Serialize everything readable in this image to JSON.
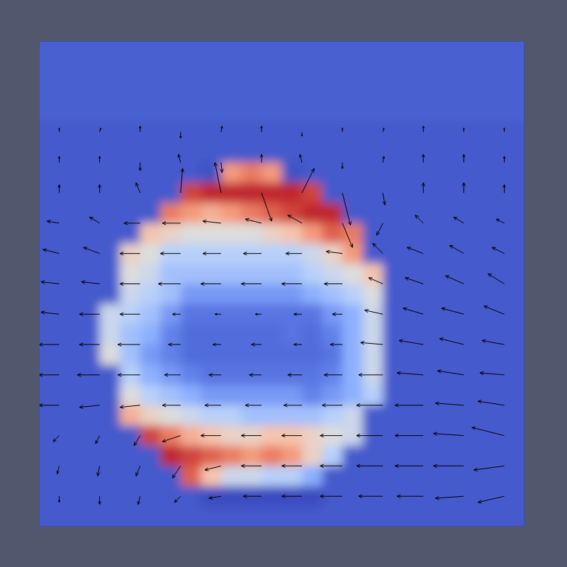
{
  "chart_data": {
    "type": "heatmap",
    "xlim": [
      0,
      24
    ],
    "ylim": [
      0,
      24
    ],
    "tick_labels": false,
    "color_range": [
      0,
      1
    ],
    "cells": [
      [
        0.07,
        0.07,
        0.07,
        0.07,
        0.07,
        0.07,
        0.07,
        0.07,
        0.07,
        0.07,
        0.07,
        0.07,
        0.07,
        0.07,
        0.07,
        0.07,
        0.07,
        0.07,
        0.07,
        0.07,
        0.07,
        0.07,
        0.07,
        0.07
      ],
      [
        0.07,
        0.07,
        0.07,
        0.07,
        0.07,
        0.07,
        0.07,
        0.07,
        0.07,
        0.07,
        0.07,
        0.07,
        0.07,
        0.07,
        0.07,
        0.07,
        0.07,
        0.07,
        0.07,
        0.07,
        0.07,
        0.07,
        0.07,
        0.07
      ],
      [
        0.07,
        0.07,
        0.07,
        0.07,
        0.07,
        0.07,
        0.07,
        0.07,
        0.07,
        0.07,
        0.07,
        0.07,
        0.07,
        0.07,
        0.07,
        0.07,
        0.07,
        0.07,
        0.07,
        0.07,
        0.07,
        0.07,
        0.07,
        0.07
      ],
      [
        0.07,
        0.07,
        0.07,
        0.07,
        0.07,
        0.07,
        0.07,
        0.07,
        0.07,
        0.07,
        0.07,
        0.07,
        0.07,
        0.07,
        0.07,
        0.07,
        0.07,
        0.07,
        0.07,
        0.07,
        0.07,
        0.07,
        0.07,
        0.07
      ],
      [
        0.05,
        0.05,
        0.05,
        0.05,
        0.05,
        0.05,
        0.05,
        0.05,
        0.05,
        0.05,
        0.05,
        0.05,
        0.05,
        0.05,
        0.05,
        0.05,
        0.05,
        0.05,
        0.05,
        0.05,
        0.05,
        0.05,
        0.05,
        0.05
      ],
      [
        0.05,
        0.05,
        0.05,
        0.05,
        0.05,
        0.05,
        0.05,
        0.05,
        0.05,
        0.05,
        0.05,
        0.05,
        0.05,
        0.05,
        0.05,
        0.05,
        0.05,
        0.05,
        0.05,
        0.05,
        0.05,
        0.05,
        0.05,
        0.05
      ],
      [
        0.05,
        0.05,
        0.05,
        0.05,
        0.05,
        0.05,
        0.05,
        0.05,
        0.02,
        0.7,
        0.75,
        0.7,
        0.02,
        0.05,
        0.05,
        0.05,
        0.05,
        0.05,
        0.05,
        0.05,
        0.05,
        0.05,
        0.05,
        0.05
      ],
      [
        0.05,
        0.05,
        0.05,
        0.05,
        0.05,
        0.05,
        0.05,
        0.85,
        0.9,
        0.9,
        0.9,
        0.9,
        0.9,
        0.85,
        0.05,
        0.05,
        0.05,
        0.05,
        0.05,
        0.05,
        0.05,
        0.05,
        0.05,
        0.05
      ],
      [
        0.05,
        0.05,
        0.05,
        0.05,
        0.05,
        0.05,
        0.75,
        0.7,
        0.65,
        0.7,
        0.75,
        0.8,
        0.85,
        0.9,
        0.9,
        0.05,
        0.05,
        0.05,
        0.05,
        0.05,
        0.05,
        0.05,
        0.05,
        0.05
      ],
      [
        0.05,
        0.05,
        0.05,
        0.05,
        0.05,
        0.6,
        0.55,
        0.5,
        0.5,
        0.5,
        0.5,
        0.55,
        0.6,
        0.7,
        0.8,
        0.75,
        0.05,
        0.05,
        0.05,
        0.05,
        0.05,
        0.05,
        0.05,
        0.05
      ],
      [
        0.05,
        0.05,
        0.05,
        0.05,
        0.55,
        0.5,
        0.4,
        0.4,
        0.4,
        0.4,
        0.4,
        0.4,
        0.4,
        0.45,
        0.55,
        0.7,
        0.05,
        0.05,
        0.05,
        0.05,
        0.05,
        0.05,
        0.05,
        0.05
      ],
      [
        0.05,
        0.05,
        0.05,
        0.05,
        0.5,
        0.45,
        0.35,
        0.35,
        0.35,
        0.35,
        0.35,
        0.35,
        0.35,
        0.4,
        0.45,
        0.5,
        0.6,
        0.05,
        0.05,
        0.05,
        0.05,
        0.05,
        0.05,
        0.05
      ],
      [
        0.05,
        0.05,
        0.05,
        0.05,
        0.45,
        0.4,
        0.35,
        0.25,
        0.25,
        0.25,
        0.25,
        0.25,
        0.25,
        0.3,
        0.35,
        0.4,
        0.5,
        0.05,
        0.05,
        0.05,
        0.05,
        0.05,
        0.05,
        0.05
      ],
      [
        0.05,
        0.05,
        0.05,
        0.45,
        0.4,
        0.35,
        0.25,
        0.15,
        0.15,
        0.15,
        0.15,
        0.15,
        0.15,
        0.15,
        0.25,
        0.3,
        0.45,
        0.05,
        0.05,
        0.05,
        0.05,
        0.05,
        0.05,
        0.05
      ],
      [
        0.05,
        0.05,
        0.05,
        0.45,
        0.35,
        0.3,
        0.2,
        0.12,
        0.12,
        0.12,
        0.12,
        0.12,
        0.15,
        0.12,
        0.2,
        0.3,
        0.45,
        0.05,
        0.05,
        0.05,
        0.05,
        0.05,
        0.05,
        0.05
      ],
      [
        0.05,
        0.05,
        0.05,
        0.5,
        0.35,
        0.25,
        0.2,
        0.12,
        0.12,
        0.12,
        0.12,
        0.12,
        0.12,
        0.12,
        0.15,
        0.3,
        0.45,
        0.05,
        0.05,
        0.05,
        0.05,
        0.05,
        0.05,
        0.05
      ],
      [
        0.05,
        0.05,
        0.05,
        0.05,
        0.4,
        0.3,
        0.25,
        0.2,
        0.15,
        0.15,
        0.15,
        0.15,
        0.15,
        0.15,
        0.2,
        0.3,
        0.45,
        0.05,
        0.05,
        0.05,
        0.05,
        0.05,
        0.05,
        0.05
      ],
      [
        0.05,
        0.05,
        0.05,
        0.05,
        0.5,
        0.4,
        0.35,
        0.3,
        0.25,
        0.25,
        0.25,
        0.25,
        0.25,
        0.2,
        0.25,
        0.3,
        0.4,
        0.05,
        0.05,
        0.05,
        0.05,
        0.05,
        0.05,
        0.05
      ],
      [
        0.05,
        0.05,
        0.05,
        0.05,
        0.65,
        0.55,
        0.5,
        0.45,
        0.4,
        0.4,
        0.35,
        0.35,
        0.35,
        0.35,
        0.4,
        0.45,
        0.05,
        0.05,
        0.05,
        0.05,
        0.05,
        0.05,
        0.05,
        0.05
      ],
      [
        0.05,
        0.05,
        0.05,
        0.05,
        0.05,
        0.85,
        0.75,
        0.65,
        0.6,
        0.55,
        0.55,
        0.6,
        0.6,
        0.55,
        0.5,
        0.45,
        0.05,
        0.05,
        0.05,
        0.05,
        0.05,
        0.05,
        0.05,
        0.05
      ],
      [
        0.05,
        0.05,
        0.05,
        0.05,
        0.05,
        0.05,
        0.9,
        0.85,
        0.8,
        0.75,
        0.7,
        0.75,
        0.7,
        0.55,
        0.4,
        0.05,
        0.05,
        0.05,
        0.05,
        0.05,
        0.05,
        0.05,
        0.05,
        0.05
      ],
      [
        0.05,
        0.05,
        0.05,
        0.05,
        0.05,
        0.05,
        0.05,
        0.8,
        0.6,
        0.45,
        0.45,
        0.4,
        0.4,
        0.3,
        0.05,
        0.05,
        0.05,
        0.05,
        0.05,
        0.05,
        0.05,
        0.05,
        0.05,
        0.05
      ],
      [
        0.05,
        0.05,
        0.05,
        0.05,
        0.05,
        0.05,
        0.05,
        0.05,
        0,
        0,
        0,
        0,
        0,
        0,
        0.05,
        0.05,
        0.05,
        0.05,
        0.05,
        0.05,
        0.05,
        0.05,
        0.05,
        0.05
      ],
      [
        0.05,
        0.05,
        0.05,
        0.05,
        0.05,
        0.05,
        0.05,
        0.05,
        0.05,
        0.05,
        0.05,
        0.05,
        0.05,
        0.05,
        0.05,
        0.05,
        0.05,
        0.05,
        0.05,
        0.05,
        0.05,
        0.05,
        0.05,
        0.05
      ]
    ],
    "vectors": {
      "x": [
        1,
        3,
        5,
        7,
        9,
        11,
        13,
        15,
        17,
        19,
        21,
        23
      ],
      "y": [
        19.5,
        18,
        16.5,
        15,
        13.5,
        12,
        10.5,
        9,
        7.5,
        6,
        4.5,
        3,
        1.5
      ],
      "u": [
        [
          0,
          0.05,
          0,
          0,
          0.05,
          0,
          0,
          0,
          0.05,
          0,
          0,
          0
        ],
        [
          0,
          0,
          0,
          -0.1,
          0.05,
          0,
          -0.1,
          0,
          0.05,
          0,
          0,
          0
        ],
        [
          0,
          0,
          -0.2,
          0.1,
          -0.3,
          0.5,
          0.6,
          0.4,
          0.1,
          0,
          0,
          0
        ],
        [
          -0.6,
          -0.5,
          -0.8,
          -0.9,
          -0.9,
          -0.8,
          -0.7,
          0.5,
          -0.3,
          -0.4,
          -0.5,
          -0.4
        ],
        [
          -0.8,
          -0.8,
          -1,
          -1,
          -0.9,
          -0.9,
          -0.8,
          -0.8,
          -0.5,
          -0.8,
          -0.7,
          -0.6
        ],
        [
          -0.9,
          -0.9,
          -1,
          -1.1,
          -1,
          -1,
          -1,
          -0.9,
          -0.7,
          -0.9,
          -0.9,
          -0.8
        ],
        [
          -0.9,
          -1,
          -1,
          -0.4,
          -0.3,
          -0.3,
          -0.4,
          -0.5,
          -0.9,
          -1,
          -1.1,
          -1
        ],
        [
          -1,
          -1,
          -1.1,
          -0.6,
          -0.4,
          -0.5,
          -0.4,
          -0.6,
          -1.1,
          -1.2,
          -1.2,
          -1.1
        ],
        [
          -1,
          -1.1,
          -1.1,
          -0.8,
          -0.6,
          -0.6,
          -0.7,
          -0.9,
          -1.2,
          -1.3,
          -1.3,
          -1.2
        ],
        [
          -1,
          -1,
          -1,
          -0.9,
          -0.8,
          -0.8,
          -0.9,
          -1,
          -1.3,
          -1.4,
          -1.4,
          -1.3
        ],
        [
          -0.3,
          -0.2,
          -0.3,
          -0.9,
          -1,
          -1,
          -1,
          -1.1,
          -1.3,
          -1.4,
          -1.5,
          -1.6
        ],
        [
          -0.1,
          -0.1,
          -0.2,
          -0.4,
          -0.8,
          -1,
          -1,
          -1.1,
          -1.3,
          -1.4,
          -1.5,
          -1.5
        ],
        [
          0,
          0,
          -0.1,
          -0.3,
          -0.6,
          -0.9,
          -1,
          -1.1,
          -1.2,
          -1.3,
          -1.4,
          -1.3
        ]
      ],
      "v": [
        [
          0.2,
          0.2,
          0.3,
          -0.3,
          0.3,
          0.3,
          -0.2,
          0.2,
          0.2,
          0.3,
          0.2,
          0.2
        ],
        [
          0.3,
          0.3,
          -0.4,
          0.4,
          -0.5,
          0.4,
          0.4,
          -0.3,
          0.3,
          0.4,
          0.4,
          0.3
        ],
        [
          0.4,
          0.4,
          0.5,
          1.2,
          1.5,
          -1.4,
          1.2,
          -1.6,
          -0.6,
          0.5,
          0.5,
          0.4
        ],
        [
          0.1,
          0.3,
          0,
          0,
          0.1,
          0.2,
          0.4,
          -1.2,
          -0.6,
          0.4,
          0.3,
          0.2
        ],
        [
          0.2,
          0.3,
          0,
          0,
          0,
          0,
          0,
          0.1,
          0.5,
          0.3,
          0.4,
          0.3
        ],
        [
          0.1,
          0.1,
          0,
          0,
          0,
          0,
          0,
          0,
          0.3,
          0.3,
          0.4,
          0.5
        ],
        [
          0.1,
          0,
          0,
          0,
          0,
          0,
          0,
          0,
          0.2,
          0.3,
          0.3,
          0.4
        ],
        [
          0,
          0,
          0,
          0,
          0,
          0,
          0,
          0,
          0.1,
          0.2,
          0.3,
          0.2
        ],
        [
          0,
          0,
          0,
          0,
          0,
          0,
          0,
          0,
          0,
          0.1,
          0.2,
          0.1
        ],
        [
          0,
          -0.1,
          -0.1,
          0,
          0,
          0,
          0,
          0,
          0,
          0,
          0.1,
          0.2
        ],
        [
          -0.3,
          -0.4,
          -0.5,
          -0.3,
          0,
          0,
          0,
          0,
          0,
          0,
          0.1,
          0.4
        ],
        [
          -0.4,
          -0.5,
          -0.5,
          -0.6,
          -0.2,
          0,
          0,
          0,
          0,
          0,
          0,
          -0.2
        ],
        [
          -0.3,
          -0.4,
          -0.4,
          -0.3,
          -0.1,
          0,
          0,
          0,
          0,
          0,
          -0.1,
          -0.3
        ]
      ]
    }
  }
}
